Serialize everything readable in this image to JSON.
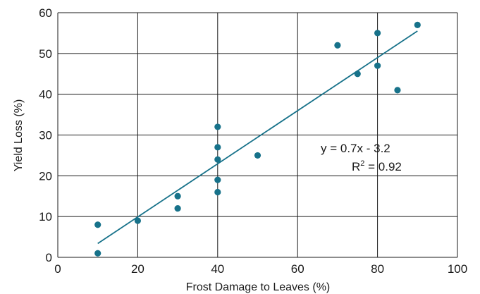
{
  "chart_data": {
    "type": "scatter",
    "title": "",
    "xlabel": "Frost Damage to Leaves (%)",
    "ylabel": "Yield Loss (%)",
    "xlim": [
      0,
      100
    ],
    "ylim": [
      0,
      60
    ],
    "x_ticks": [
      0,
      20,
      40,
      60,
      80,
      100
    ],
    "y_ticks": [
      0,
      10,
      20,
      30,
      40,
      50,
      60
    ],
    "grid": true,
    "legend": "none",
    "marker_color": "#17728a",
    "line_color": "#17728a",
    "points": [
      {
        "x": 10,
        "y": 1
      },
      {
        "x": 10,
        "y": 8
      },
      {
        "x": 20,
        "y": 9
      },
      {
        "x": 30,
        "y": 12
      },
      {
        "x": 30,
        "y": 15
      },
      {
        "x": 40,
        "y": 16
      },
      {
        "x": 40,
        "y": 19
      },
      {
        "x": 40,
        "y": 24
      },
      {
        "x": 40,
        "y": 27
      },
      {
        "x": 40,
        "y": 32
      },
      {
        "x": 50,
        "y": 25
      },
      {
        "x": 70,
        "y": 52
      },
      {
        "x": 75,
        "y": 45
      },
      {
        "x": 80,
        "y": 47
      },
      {
        "x": 80,
        "y": 55
      },
      {
        "x": 85,
        "y": 41
      },
      {
        "x": 90,
        "y": 57
      }
    ],
    "trendline": {
      "x_start": 10,
      "y_start": 3.4,
      "x_end": 90,
      "y_end": 55.5
    },
    "annotation": {
      "equation": "y = 0.7x - 3.2",
      "r2_prefix": "R",
      "r2_exp": "2",
      "r2_value": " = 0.92"
    }
  }
}
